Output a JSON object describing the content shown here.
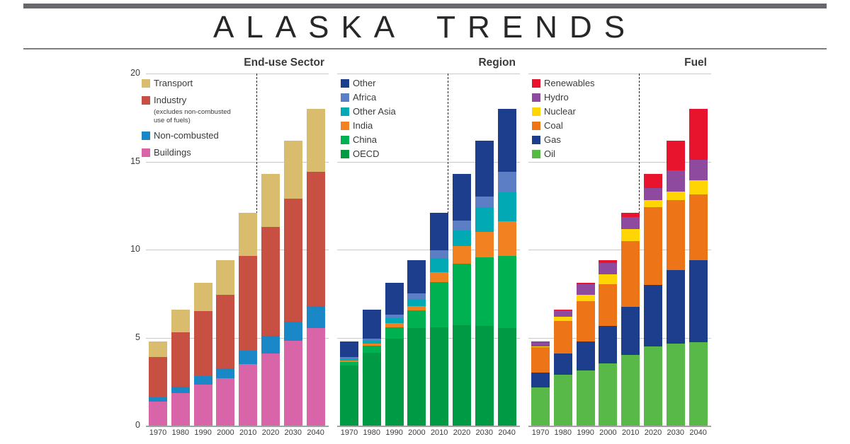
{
  "header": {
    "title": "ALASKA TRENDS"
  },
  "axis": {
    "yticks": [
      0,
      5,
      10,
      15,
      20
    ],
    "ylim": [
      0,
      20
    ],
    "years": [
      "1970",
      "1980",
      "1990",
      "2000",
      "2010",
      "2020",
      "2030",
      "2040"
    ]
  },
  "colors": {
    "transport": "#d9bc6e",
    "industry": "#c75043",
    "non_combusted": "#1a87c6",
    "buildings": "#d765a8",
    "other": "#1d3d8d",
    "africa": "#5b7ec4",
    "other_asia": "#00a9b4",
    "india": "#f18121",
    "china": "#00b152",
    "oecd": "#009a44",
    "renewables": "#e8142d",
    "hydro": "#8d4a9e",
    "nuclear": "#ffd503",
    "coal": "#ee7517",
    "gas": "#1d3d8d",
    "oil": "#58b948",
    "gridline": "#c9c9c9",
    "baseline": "#a2a2a2",
    "header_bar": "#67686c"
  },
  "chart_data": [
    {
      "type": "bar",
      "stacked": true,
      "title": "End-use Sector",
      "categories": [
        "1970",
        "1980",
        "1990",
        "2000",
        "2010",
        "2020",
        "2030",
        "2040"
      ],
      "ylim": [
        0,
        20
      ],
      "yticks": [
        0,
        5,
        10,
        15,
        20
      ],
      "grid": true,
      "projection_divider_between": [
        "2010",
        "2020"
      ],
      "series": [
        {
          "name": "Buildings",
          "color": "#d765a8",
          "values": [
            1.35,
            1.85,
            2.35,
            2.7,
            3.5,
            4.1,
            4.8,
            5.55
          ]
        },
        {
          "name": "Non-combusted",
          "color": "#1a87c6",
          "values": [
            0.25,
            0.35,
            0.45,
            0.55,
            0.75,
            1.0,
            1.1,
            1.25
          ]
        },
        {
          "name": "Industry",
          "color": "#c75043",
          "values": [
            2.3,
            3.1,
            3.7,
            4.2,
            5.4,
            6.2,
            7.0,
            7.6
          ]
        },
        {
          "name": "Transport",
          "color": "#d9bc6e",
          "values": [
            0.9,
            1.3,
            1.6,
            1.95,
            2.45,
            3.0,
            3.3,
            3.6
          ]
        }
      ],
      "legend": [
        {
          "label": "Transport",
          "color": "#d9bc6e"
        },
        {
          "label": "Industry",
          "color": "#c75043",
          "note": "(excludes non-combusted use of fuels)"
        },
        {
          "label": "Non-combusted",
          "color": "#1a87c6"
        },
        {
          "label": "Buildings",
          "color": "#d765a8"
        }
      ]
    },
    {
      "type": "bar",
      "stacked": true,
      "title": "Region",
      "categories": [
        "1970",
        "1980",
        "1990",
        "2000",
        "2010",
        "2020",
        "2030",
        "2040"
      ],
      "ylim": [
        0,
        20
      ],
      "grid": true,
      "projection_divider_between": [
        "2010",
        "2020"
      ],
      "series": [
        {
          "name": "OECD",
          "color": "#009a44",
          "values": [
            3.4,
            4.15,
            4.95,
            5.55,
            5.6,
            5.7,
            5.65,
            5.55
          ]
        },
        {
          "name": "China",
          "color": "#00b152",
          "values": [
            0.2,
            0.37,
            0.65,
            1.0,
            2.55,
            3.5,
            3.9,
            4.1
          ]
        },
        {
          "name": "India",
          "color": "#f18121",
          "values": [
            0.1,
            0.13,
            0.22,
            0.25,
            0.55,
            1.0,
            1.45,
            1.95
          ]
        },
        {
          "name": "Other Asia",
          "color": "#00a9b4",
          "values": [
            0.12,
            0.18,
            0.3,
            0.4,
            0.8,
            0.9,
            1.4,
            1.65
          ]
        },
        {
          "name": "Africa",
          "color": "#5b7ec4",
          "values": [
            0.08,
            0.13,
            0.18,
            0.3,
            0.45,
            0.55,
            0.6,
            1.15
          ]
        },
        {
          "name": "Other",
          "color": "#1d3d8d",
          "values": [
            0.9,
            1.64,
            1.8,
            1.9,
            2.15,
            2.65,
            3.2,
            3.6
          ]
        }
      ],
      "legend": [
        {
          "label": "Other",
          "color": "#1d3d8d"
        },
        {
          "label": "Africa",
          "color": "#5b7ec4"
        },
        {
          "label": "Other Asia",
          "color": "#00a9b4"
        },
        {
          "label": "India",
          "color": "#f18121"
        },
        {
          "label": "China",
          "color": "#00b152"
        },
        {
          "label": "OECD",
          "color": "#009a44"
        }
      ]
    },
    {
      "type": "bar",
      "stacked": true,
      "title": "Fuel",
      "categories": [
        "1970",
        "1980",
        "1990",
        "2000",
        "2010",
        "2020",
        "2030",
        "2040"
      ],
      "ylim": [
        0,
        20
      ],
      "grid": true,
      "projection_divider_between": [
        "2010",
        "2020"
      ],
      "series": [
        {
          "name": "Oil",
          "color": "#58b948",
          "values": [
            2.15,
            2.9,
            3.15,
            3.55,
            4.0,
            4.5,
            4.65,
            4.75
          ]
        },
        {
          "name": "Gas",
          "color": "#1d3d8d",
          "values": [
            0.85,
            1.2,
            1.65,
            2.1,
            2.75,
            3.5,
            4.2,
            4.65
          ]
        },
        {
          "name": "Coal",
          "color": "#ee7517",
          "values": [
            1.45,
            1.85,
            2.25,
            2.4,
            3.75,
            4.4,
            3.95,
            3.75
          ]
        },
        {
          "name": "Nuclear",
          "color": "#ffd503",
          "values": [
            0.05,
            0.25,
            0.4,
            0.55,
            0.65,
            0.4,
            0.5,
            0.8
          ]
        },
        {
          "name": "Hydro",
          "color": "#8d4a9e",
          "values": [
            0.25,
            0.35,
            0.6,
            0.65,
            0.7,
            0.7,
            1.2,
            1.15
          ]
        },
        {
          "name": "Renewables",
          "color": "#e8142d",
          "values": [
            0.05,
            0.05,
            0.05,
            0.15,
            0.25,
            0.8,
            1.7,
            2.9
          ]
        }
      ],
      "legend": [
        {
          "label": "Renewables",
          "color": "#e8142d"
        },
        {
          "label": "Hydro",
          "color": "#8d4a9e"
        },
        {
          "label": "Nuclear",
          "color": "#ffd503"
        },
        {
          "label": "Coal",
          "color": "#ee7517"
        },
        {
          "label": "Gas",
          "color": "#1d3d8d"
        },
        {
          "label": "Oil",
          "color": "#58b948"
        }
      ]
    }
  ]
}
